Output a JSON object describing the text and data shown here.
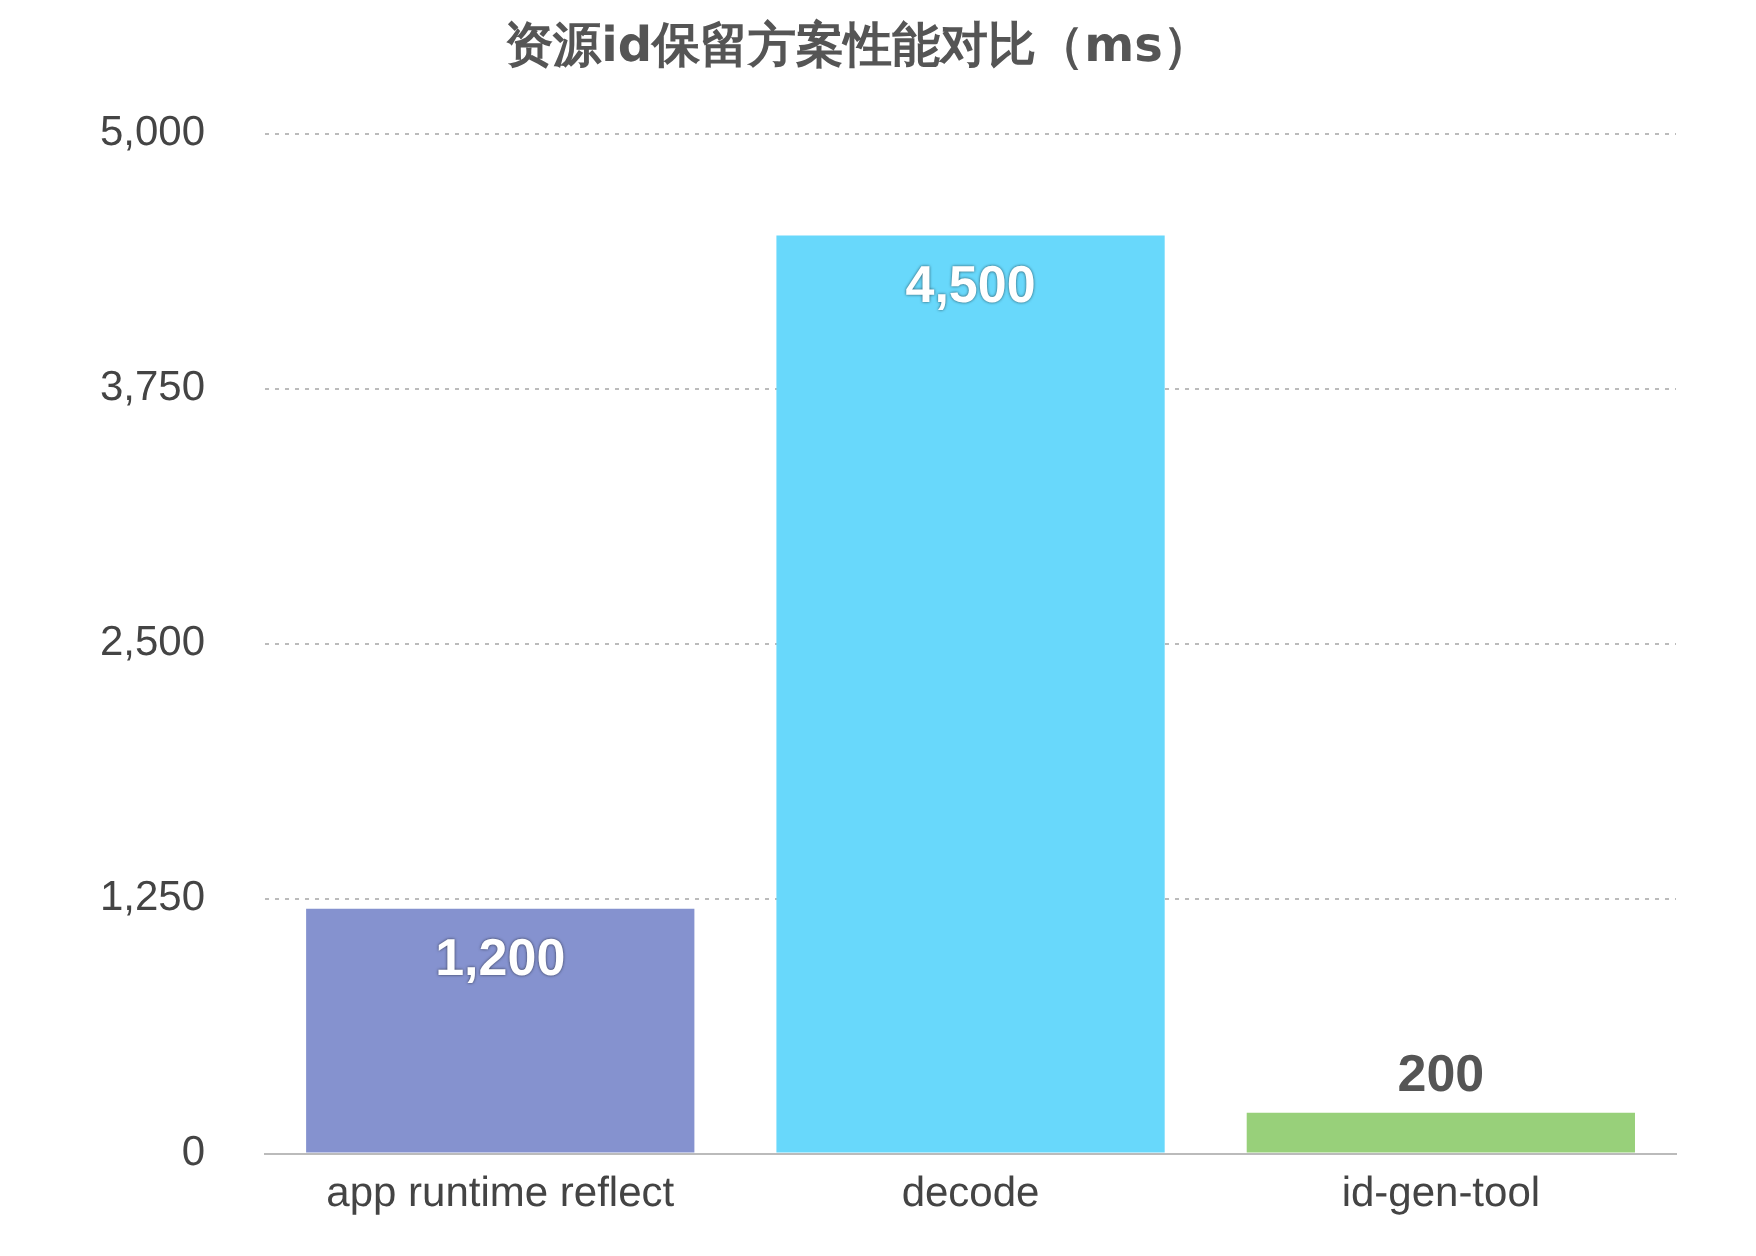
{
  "chart_data": {
    "type": "bar",
    "title": "资源id保留方案性能对比（ms）",
    "categories": [
      "app runtime reflect",
      "decode",
      "id-gen-tool"
    ],
    "values": [
      1200,
      4500,
      200
    ],
    "colors": [
      "#8592cf",
      "#68d8fb",
      "#98d07a"
    ],
    "value_labels": [
      "1,200",
      "4,500",
      "200"
    ],
    "ylim": [
      0,
      5000
    ],
    "yticks": [
      0,
      {
        "value": 1250,
        "label": "1,250"
      },
      {
        "value": 2500,
        "label": "2,500"
      },
      {
        "value": 3750,
        "label": "3,750"
      },
      {
        "value": 5000,
        "label": "5,000"
      }
    ],
    "grid": "y",
    "legend": false
  }
}
